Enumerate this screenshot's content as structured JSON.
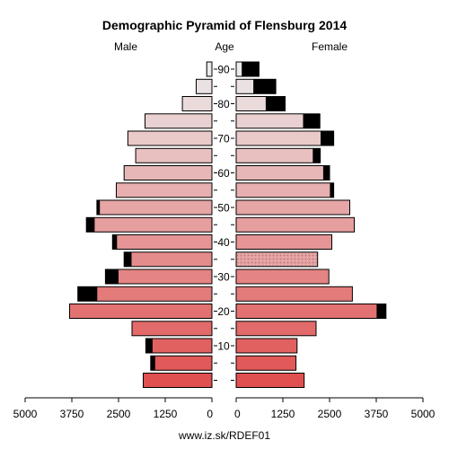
{
  "chart_data": {
    "type": "bar",
    "title": "Demographic Pyramid of Flensburg 2014",
    "left_header": "Male",
    "center_header": "Age",
    "right_header": "Female",
    "footer": "www.iz.sk/RDEF01",
    "age_groups": [
      "0-4",
      "5-9",
      "10-14",
      "15-19",
      "20-24",
      "25-29",
      "30-34",
      "35-39",
      "40-44",
      "45-49",
      "50-54",
      "55-59",
      "60-64",
      "65-69",
      "70-74",
      "75-79",
      "80-84",
      "85-89",
      "90+"
    ],
    "age_tick_labels": [
      {
        "label": "10",
        "group_index": 2
      },
      {
        "label": "20",
        "group_index": 4
      },
      {
        "label": "30",
        "group_index": 6
      },
      {
        "label": "40",
        "group_index": 8
      },
      {
        "label": "50",
        "group_index": 10
      },
      {
        "label": "60",
        "group_index": 12
      },
      {
        "label": "70",
        "group_index": 14
      },
      {
        "label": "80",
        "group_index": 16
      },
      {
        "label": "90",
        "group_index": 18
      }
    ],
    "series": [
      {
        "name": "Male",
        "side": "left",
        "values": [
          1840,
          1640,
          1770,
          2140,
          3810,
          3590,
          2850,
          2350,
          2660,
          3360,
          3080,
          2560,
          2350,
          2040,
          2250,
          1790,
          790,
          420,
          140
        ],
        "foreign": [
          0,
          120,
          180,
          0,
          0,
          520,
          350,
          200,
          120,
          220,
          80,
          0,
          0,
          0,
          0,
          0,
          0,
          0,
          0
        ]
      },
      {
        "name": "Female",
        "side": "right",
        "values": [
          1820,
          1600,
          1630,
          2140,
          4010,
          3110,
          2480,
          2180,
          2560,
          3160,
          3040,
          2610,
          2500,
          2250,
          2610,
          2240,
          1310,
          1060,
          610
        ],
        "foreign": [
          0,
          0,
          0,
          0,
          250,
          0,
          0,
          0,
          0,
          0,
          0,
          100,
          170,
          200,
          350,
          450,
          520,
          600,
          460
        ]
      }
    ],
    "x_tick_labels": [
      "5000",
      "3750",
      "2500",
      "1250",
      "0",
      "0",
      "1250",
      "2500",
      "3750",
      "5000"
    ],
    "xlim": [
      0,
      5000
    ],
    "grid": false,
    "colors": {
      "bar_youngest": "#e05050",
      "bar_oldest": "#ebebeb",
      "foreign": "#000000",
      "outline": "#000000",
      "age_35_39_female_pattern": "#e0a0a0"
    }
  }
}
